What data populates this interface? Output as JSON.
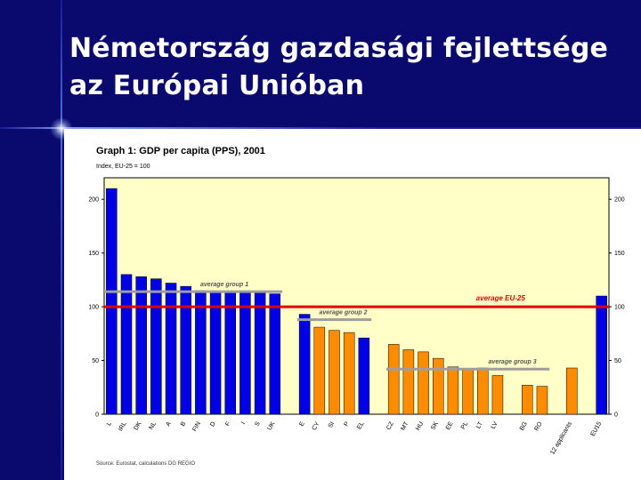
{
  "slide": {
    "title_line1": "Németország gazdasági fejlettsége",
    "title_line2": "az Európai Unióban"
  },
  "colors": {
    "background": "#0a0a6e",
    "plot_bg": "#ffffc8",
    "bar_blue": "#0000e6",
    "bar_orange": "#ff8c00",
    "eu_line": "#e00000",
    "group_line": "#9e9e9e"
  },
  "chart_data": {
    "type": "bar",
    "title": "Graph 1: GDP per capita (PPS), 2001",
    "ylabel": "Index, EU-25 = 100",
    "ylim": [
      0,
      220
    ],
    "yticks": [
      0,
      50,
      100,
      150,
      200
    ],
    "grid": false,
    "source": "Source: Eurostat, calculations DG REGIO",
    "categories": [
      "L",
      "IRL",
      "DK",
      "NL",
      "A",
      "B",
      "FIN",
      "D",
      "F",
      "I",
      "S",
      "UK",
      "E",
      "CY",
      "SI",
      "P",
      "EL",
      "CZ",
      "MT",
      "HU",
      "SK",
      "EE",
      "PL",
      "LT",
      "LV",
      "BG",
      "RO",
      "12 applicants",
      "EU15"
    ],
    "values": [
      210,
      130,
      128,
      126,
      122,
      119,
      115,
      114,
      114,
      113,
      113,
      112,
      93,
      81,
      78,
      76,
      71,
      65,
      60,
      58,
      52,
      44,
      42,
      43,
      36,
      27,
      26,
      43,
      110
    ],
    "bar_colors": [
      "blue",
      "blue",
      "blue",
      "blue",
      "blue",
      "blue",
      "blue",
      "blue",
      "blue",
      "blue",
      "blue",
      "blue",
      "blue",
      "orange",
      "orange",
      "orange",
      "blue",
      "orange",
      "orange",
      "orange",
      "orange",
      "orange",
      "orange",
      "orange",
      "orange",
      "orange",
      "orange",
      "orange",
      "blue"
    ],
    "reference_lines": [
      {
        "label": "average EU-25",
        "value": 100
      },
      {
        "label": "average group 1",
        "value": 114
      },
      {
        "label": "average group 2",
        "value": 88
      },
      {
        "label": "average group 3",
        "value": 42
      }
    ]
  }
}
